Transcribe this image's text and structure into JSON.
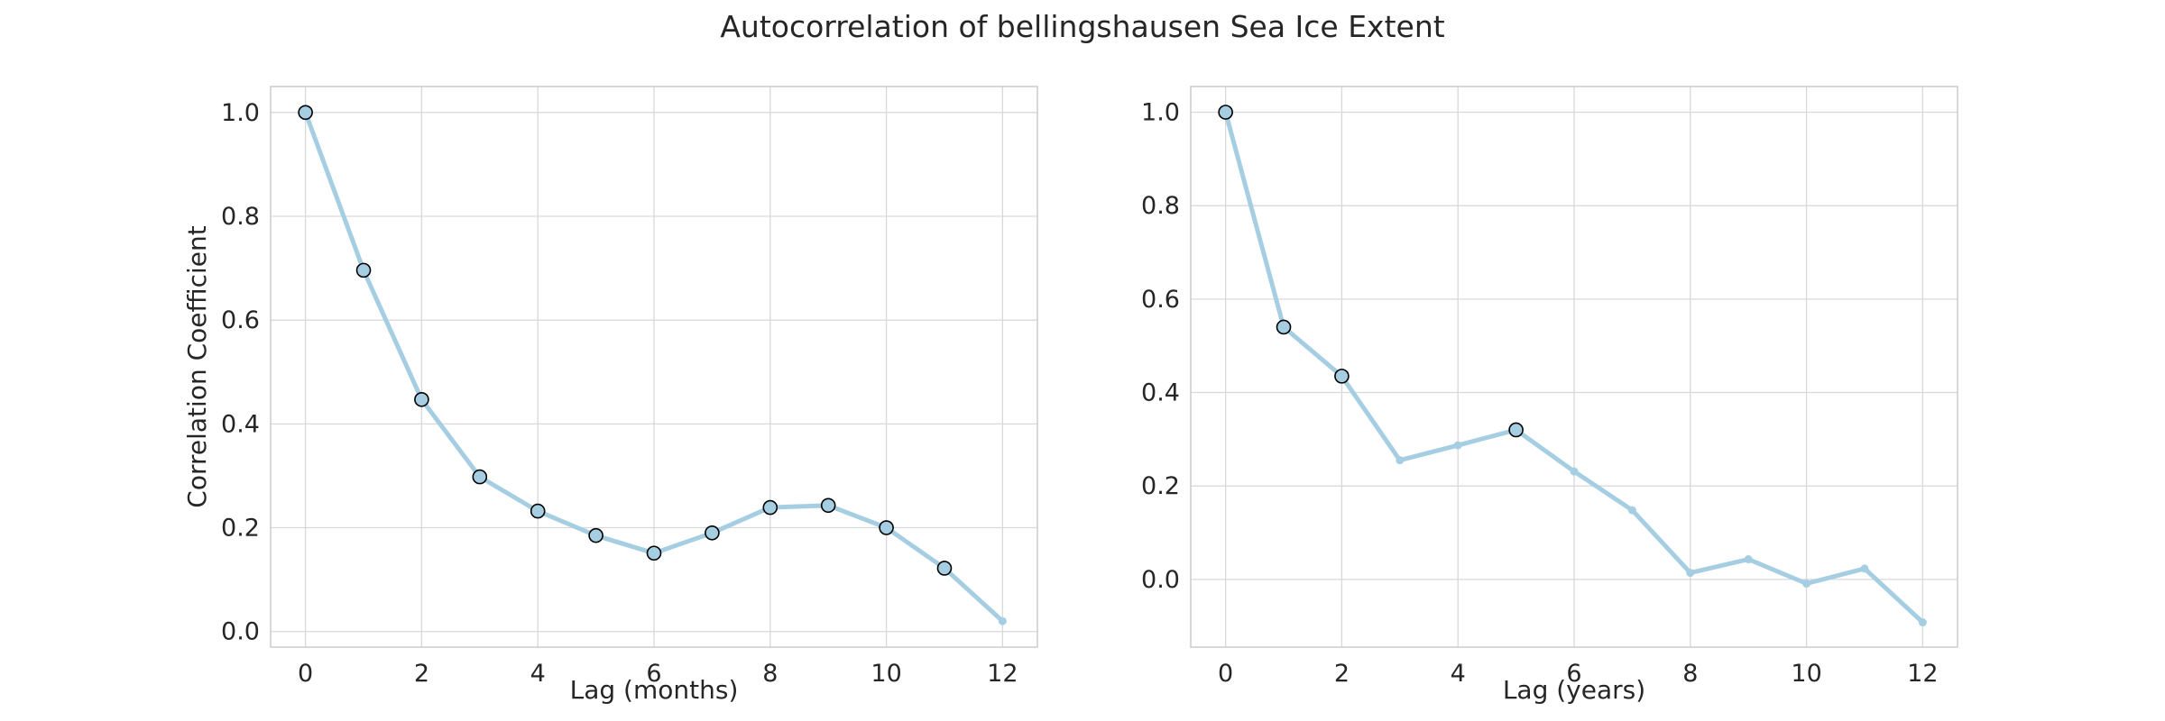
{
  "figure_title": "Autocorrelation of bellingshausen Sea Ice Extent",
  "colors": {
    "line": "#a6cee3",
    "marker_edge": "#000000",
    "grid": "#d9d9d9",
    "frame": "#cccccc",
    "text": "#262626"
  },
  "chart_data": [
    {
      "type": "line",
      "title": "",
      "xlabel": "Lag (months)",
      "ylabel": "Correlation Coefficient",
      "xlim": [
        -0.6,
        12.6
      ],
      "ylim": [
        -0.03,
        1.05
      ],
      "xticks": [
        0,
        2,
        4,
        6,
        8,
        10,
        12
      ],
      "yticks": [
        0.0,
        0.2,
        0.4,
        0.6,
        0.8,
        1.0
      ],
      "ytick_labels": [
        "0.0",
        "0.2",
        "0.4",
        "0.6",
        "0.8",
        "1.0"
      ],
      "grid": true,
      "x": [
        0,
        1,
        2,
        3,
        4,
        5,
        6,
        7,
        8,
        9,
        10,
        11,
        12
      ],
      "values": [
        1.0,
        0.696,
        0.447,
        0.298,
        0.232,
        0.185,
        0.151,
        0.19,
        0.239,
        0.243,
        0.2,
        0.122,
        0.02
      ],
      "highlighted": [
        true,
        true,
        true,
        true,
        true,
        true,
        true,
        true,
        true,
        true,
        true,
        true,
        false
      ]
    },
    {
      "type": "line",
      "title": "",
      "xlabel": "Lag (years)",
      "ylabel": "",
      "xlim": [
        -0.6,
        12.6
      ],
      "ylim": [
        -0.145,
        1.055
      ],
      "xticks": [
        0,
        2,
        4,
        6,
        8,
        10,
        12
      ],
      "yticks": [
        0.0,
        0.2,
        0.4,
        0.6,
        0.8,
        1.0
      ],
      "ytick_labels": [
        "0.0",
        "0.2",
        "0.4",
        "0.6",
        "0.8",
        "1.0"
      ],
      "grid": true,
      "x": [
        0,
        1,
        2,
        3,
        4,
        5,
        6,
        7,
        8,
        9,
        10,
        11,
        12
      ],
      "values": [
        1.0,
        0.54,
        0.435,
        0.255,
        0.287,
        0.32,
        0.231,
        0.148,
        0.014,
        0.043,
        -0.009,
        0.023,
        -0.092
      ],
      "highlighted": [
        true,
        true,
        true,
        false,
        false,
        true,
        false,
        false,
        false,
        false,
        false,
        false,
        false
      ]
    }
  ]
}
